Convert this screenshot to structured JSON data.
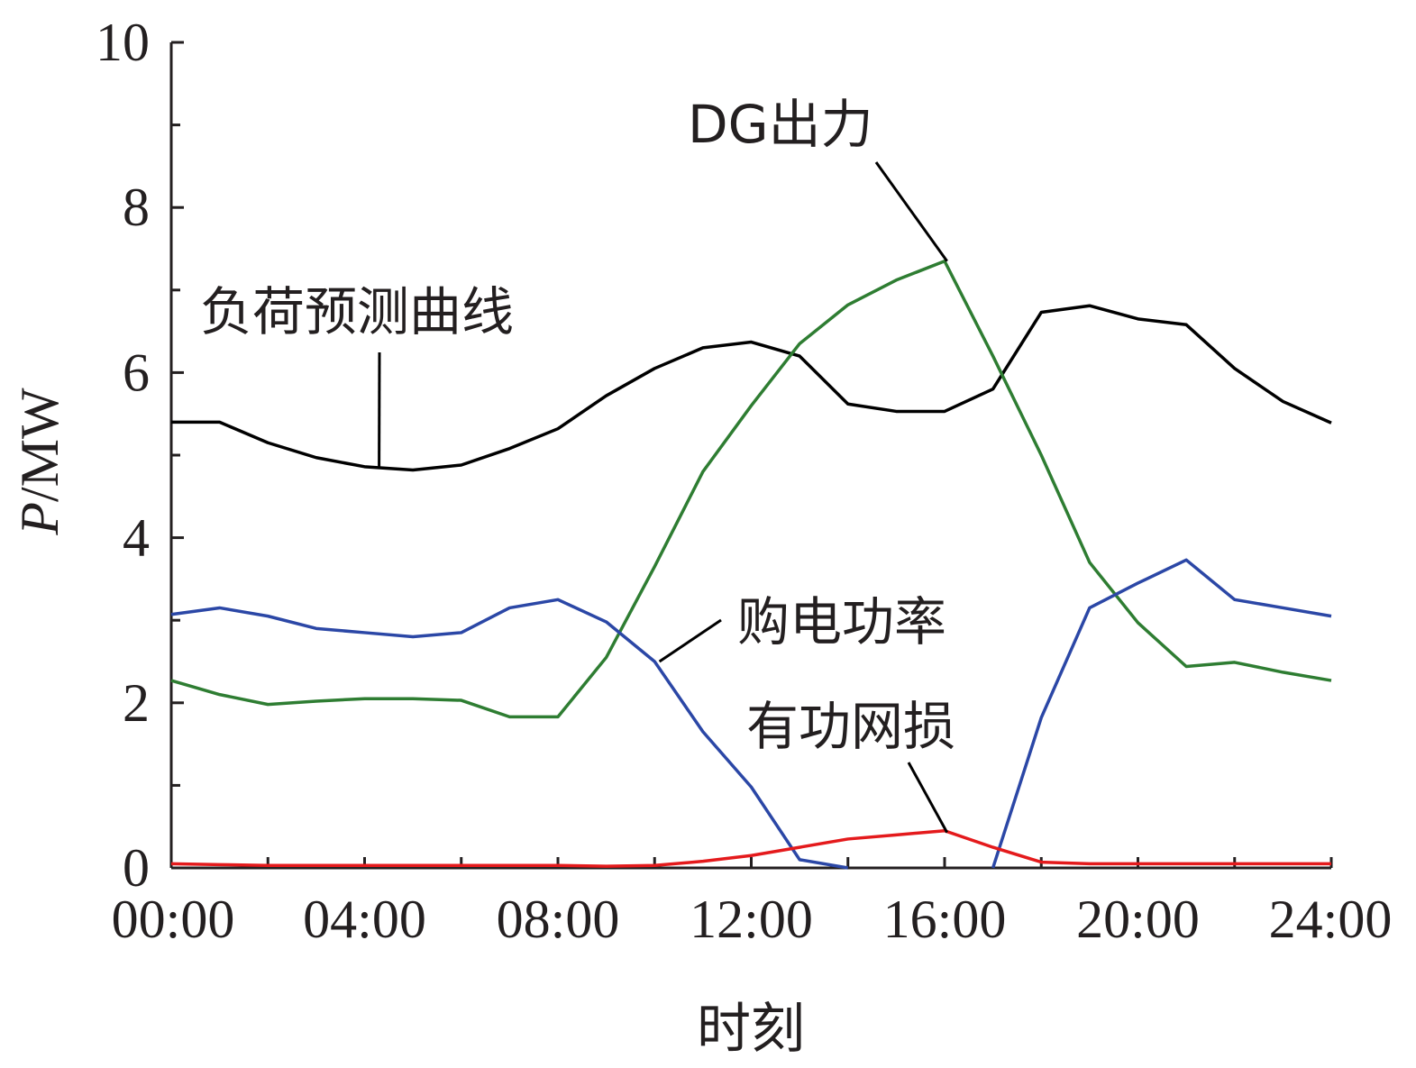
{
  "chart_data": {
    "type": "line",
    "xlabel": "时刻",
    "ylabel_italic": "P",
    "ylabel_rest": "/MW",
    "x_ticks": [
      "00:00",
      "04:00",
      "08:00",
      "12:00",
      "16:00",
      "20:00",
      "24:00"
    ],
    "y_ticks": [
      "0",
      "2",
      "4",
      "6",
      "8",
      "10"
    ],
    "xlim": [
      0,
      24
    ],
    "ylim": [
      0,
      10
    ],
    "x": [
      0,
      1,
      2,
      3,
      4,
      5,
      6,
      7,
      8,
      9,
      10,
      11,
      12,
      13,
      14,
      15,
      16,
      17,
      18,
      19,
      20,
      21,
      22,
      23,
      24
    ],
    "series": [
      {
        "name": "负荷预测曲线",
        "color": "#000000",
        "values": [
          5.4,
          5.4,
          5.15,
          4.97,
          4.86,
          4.82,
          4.88,
          5.08,
          5.32,
          5.72,
          6.05,
          6.3,
          6.37,
          6.2,
          5.62,
          5.53,
          5.53,
          5.8,
          6.73,
          6.81,
          6.65,
          6.58,
          6.05,
          5.65,
          5.39
        ]
      },
      {
        "name": "DG出力",
        "color": "#2e7d32",
        "values": [
          2.27,
          2.1,
          1.98,
          2.02,
          2.05,
          2.05,
          2.03,
          1.83,
          1.83,
          2.55,
          3.65,
          4.8,
          5.6,
          6.35,
          6.82,
          7.12,
          7.35,
          6.2,
          5.0,
          3.7,
          2.97,
          2.44,
          2.49,
          2.37,
          2.27
        ]
      },
      {
        "name": "购电功率",
        "color": "#2b47a6",
        "values": [
          3.07,
          3.15,
          3.05,
          2.9,
          2.85,
          2.8,
          2.85,
          3.15,
          3.25,
          2.98,
          2.5,
          1.65,
          0.98,
          0.1,
          -0.05,
          null,
          null,
          -0.05,
          1.82,
          3.15,
          3.45,
          3.73,
          3.25,
          3.15,
          3.05
        ]
      },
      {
        "name": "有功网损",
        "color": "#e41a1c",
        "values": [
          0.05,
          0.04,
          0.03,
          0.03,
          0.03,
          0.03,
          0.03,
          0.03,
          0.03,
          0.02,
          0.03,
          0.08,
          0.15,
          0.25,
          0.35,
          0.4,
          0.45,
          0.25,
          0.07,
          0.05,
          0.05,
          0.05,
          0.05,
          0.05,
          0.05
        ]
      }
    ],
    "annotations": [
      {
        "series_index": 0,
        "text": "负荷预测曲线",
        "x": 4.3,
        "y": 4.86
      },
      {
        "series_index": 1,
        "text": "DG出力",
        "x": 16.05,
        "y": 7.35
      },
      {
        "series_index": 2,
        "text": "购电功率",
        "x": 10.1,
        "y": 2.5
      },
      {
        "series_index": 3,
        "text": "有功网损",
        "x": 16.05,
        "y": 0.43
      }
    ],
    "grid": false,
    "legend": "none (inline annotations)"
  }
}
